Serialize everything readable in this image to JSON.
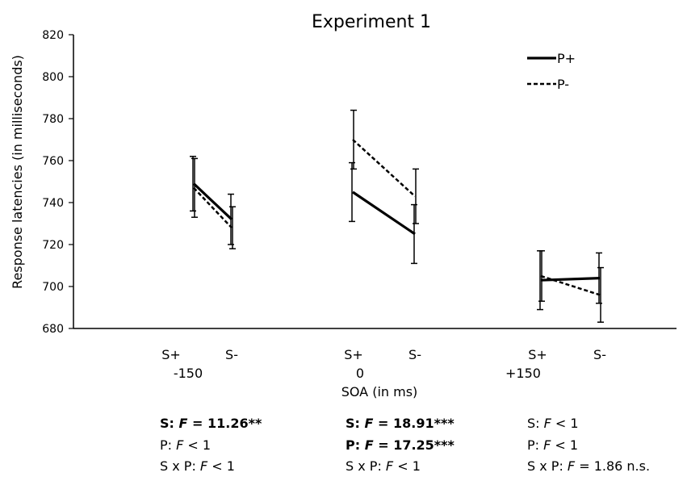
{
  "chart_data": {
    "type": "line",
    "title": "Experiment 1",
    "xlabel": "SOA (in ms)",
    "ylabel": "Response latencies (in milliseconds)",
    "ylim": [
      680,
      820
    ],
    "yticks": [
      680,
      700,
      720,
      740,
      760,
      780,
      800,
      820
    ],
    "groups": [
      {
        "soa": "-150",
        "levels": [
          "S+",
          "S-"
        ]
      },
      {
        "soa": "0",
        "levels": [
          "S+",
          "S-"
        ]
      },
      {
        "soa": "+150",
        "levels": [
          "S+",
          "S-"
        ]
      }
    ],
    "legend_position": "top-right",
    "series": [
      {
        "name": "P+",
        "style": "solid",
        "values": [
          [
            749,
            732
          ],
          [
            745,
            725
          ],
          [
            703,
            704
          ]
        ],
        "errors": [
          [
            13,
            12
          ],
          [
            14,
            14
          ],
          [
            14,
            12
          ]
        ]
      },
      {
        "name": "P-",
        "style": "dashed",
        "values": [
          [
            747,
            728
          ],
          [
            770,
            743
          ],
          [
            705,
            696
          ]
        ],
        "errors": [
          [
            14,
            10
          ],
          [
            14,
            13
          ],
          [
            12,
            13
          ]
        ]
      }
    ]
  },
  "stats": [
    [
      {
        "bold": true,
        "parts": [
          [
            "S: ",
            false
          ],
          [
            "F",
            true
          ],
          [
            " = 11.26**",
            false
          ]
        ]
      },
      {
        "bold": false,
        "parts": [
          [
            "P: ",
            false
          ],
          [
            "F",
            true
          ],
          [
            " < 1",
            false
          ]
        ]
      },
      {
        "bold": false,
        "parts": [
          [
            "S x P: ",
            false
          ],
          [
            "F",
            true
          ],
          [
            " < 1",
            false
          ]
        ]
      }
    ],
    [
      {
        "bold": true,
        "parts": [
          [
            "S: ",
            false
          ],
          [
            "F",
            true
          ],
          [
            " = 18.91***",
            false
          ]
        ]
      },
      {
        "bold": true,
        "parts": [
          [
            "P: ",
            false
          ],
          [
            "F",
            true
          ],
          [
            " = 17.25***",
            false
          ]
        ]
      },
      {
        "bold": false,
        "parts": [
          [
            "S x P: ",
            false
          ],
          [
            "F",
            true
          ],
          [
            " < 1",
            false
          ]
        ]
      }
    ],
    [
      {
        "bold": false,
        "parts": [
          [
            "S: ",
            false
          ],
          [
            "F",
            true
          ],
          [
            " < 1",
            false
          ]
        ]
      },
      {
        "bold": false,
        "parts": [
          [
            "P: ",
            false
          ],
          [
            "F",
            true
          ],
          [
            " < 1",
            false
          ]
        ]
      },
      {
        "bold": false,
        "parts": [
          [
            "S x P: ",
            false
          ],
          [
            "F",
            true
          ],
          [
            " = 1.86 n.s.",
            false
          ]
        ]
      }
    ]
  ]
}
